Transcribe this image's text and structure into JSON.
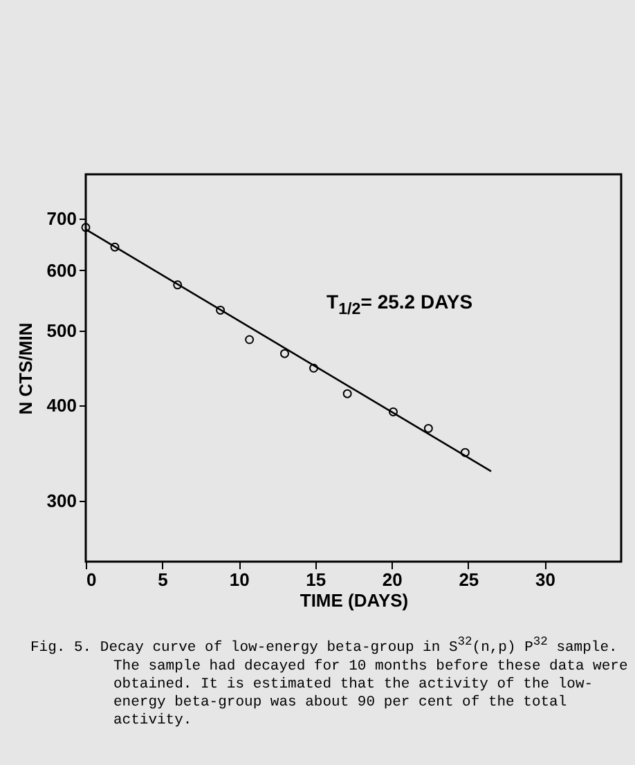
{
  "chart_data": {
    "type": "scatter",
    "xlabel": "TIME (DAYS)",
    "ylabel": "N CTS/MIN",
    "log": "y",
    "xlim": [
      0,
      35
    ],
    "xticks": [
      0,
      5,
      10,
      15,
      20,
      25,
      30
    ],
    "ylim": [
      250,
      800
    ],
    "yticks": [
      300,
      400,
      500,
      600,
      700
    ],
    "series": [
      {
        "color": "#000000",
        "marker": "circle",
        "x": [
          0,
          1.9,
          6.0,
          8.8,
          10.7,
          13.0,
          14.9,
          17.1,
          20.1,
          22.4,
          24.8
        ],
        "values": [
          682,
          643,
          574,
          532,
          487,
          467,
          447,
          414,
          392,
          373,
          347
        ]
      },
      {
        "type": "line",
        "color": "#000000",
        "x": [
          0,
          26.5
        ],
        "values": [
          678,
          328
        ]
      }
    ],
    "annotations": [
      "T$_{1/2}$= 25.2 DAYS",
      "Fig. 5.  Decay curve of low-energy beta-group in S$^{32}$(n,p) P$^{32}$ sample.  The sample had decayed for 10 months before these data were obtained.  It is estimated that the activity of the low-energy beta-group was about 90 per cent of the total activity."
    ]
  }
}
